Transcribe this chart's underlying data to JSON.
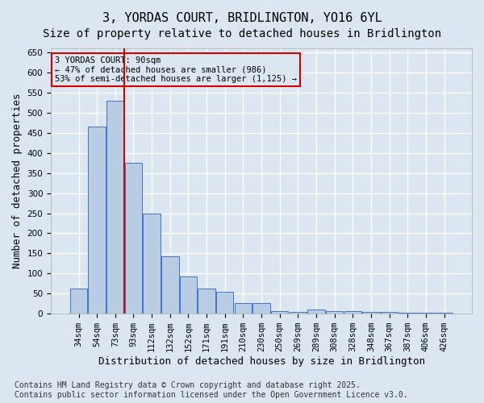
{
  "title": "3, YORDAS COURT, BRIDLINGTON, YO16 6YL",
  "subtitle": "Size of property relative to detached houses in Bridlington",
  "xlabel": "Distribution of detached houses by size in Bridlington",
  "ylabel": "Number of detached properties",
  "categories": [
    "34sqm",
    "54sqm",
    "73sqm",
    "93sqm",
    "112sqm",
    "132sqm",
    "152sqm",
    "171sqm",
    "191sqm",
    "210sqm",
    "230sqm",
    "250sqm",
    "269sqm",
    "289sqm",
    "308sqm",
    "328sqm",
    "348sqm",
    "367sqm",
    "387sqm",
    "406sqm",
    "426sqm"
  ],
  "values": [
    63,
    465,
    530,
    375,
    250,
    142,
    93,
    63,
    55,
    27,
    27,
    6,
    5,
    10,
    6,
    6,
    4,
    4,
    3,
    3,
    2
  ],
  "bar_color": "#b8cce4",
  "bar_edge_color": "#4472c4",
  "bg_color": "#dce6f1",
  "grid_color": "#ffffff",
  "property_line_color": "#cc0000",
  "annotation_text": "3 YORDAS COURT: 90sqm\n← 47% of detached houses are smaller (986)\n53% of semi-detached houses are larger (1,125) →",
  "annotation_box_color": "#cc0000",
  "ylim": [
    0,
    660
  ],
  "yticks": [
    0,
    50,
    100,
    150,
    200,
    250,
    300,
    350,
    400,
    450,
    500,
    550,
    600,
    650
  ],
  "footnote": "Contains HM Land Registry data © Crown copyright and database right 2025.\nContains public sector information licensed under the Open Government Licence v3.0.",
  "title_fontsize": 11,
  "subtitle_fontsize": 10,
  "axis_label_fontsize": 9,
  "tick_fontsize": 7.5,
  "footnote_fontsize": 7
}
